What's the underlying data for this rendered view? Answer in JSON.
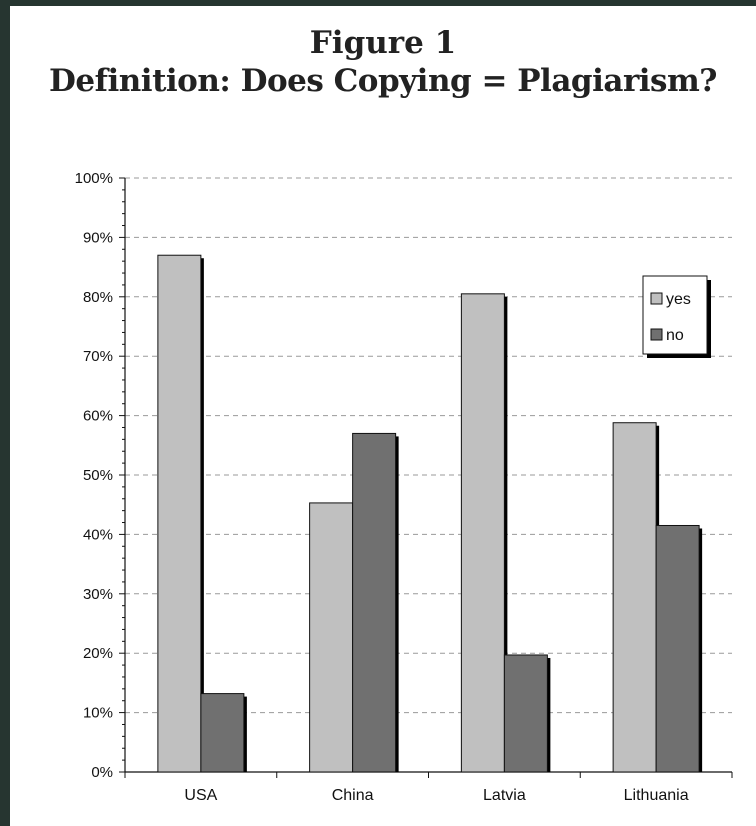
{
  "chart_data": {
    "type": "bar",
    "title_line1": "Figure 1",
    "title_line2": "Definition: Does Copying = Plagiarism?",
    "categories": [
      "USA",
      "China",
      "Latvia",
      "Lithuania"
    ],
    "series": [
      {
        "name": "yes",
        "values": [
          87,
          45.3,
          80.5,
          58.8
        ],
        "color": "#c0c0c0"
      },
      {
        "name": "no",
        "values": [
          13.2,
          57,
          19.7,
          41.5
        ],
        "color": "#707070"
      }
    ],
    "ylim": [
      0,
      100
    ],
    "y_ticks": [
      "0%",
      "10%",
      "20%",
      "30%",
      "40%",
      "50%",
      "60%",
      "70%",
      "80%",
      "90%",
      "100%"
    ],
    "xlabel": "",
    "ylabel": "",
    "grid": "dashed horizontal",
    "legend_position": "top-right"
  }
}
